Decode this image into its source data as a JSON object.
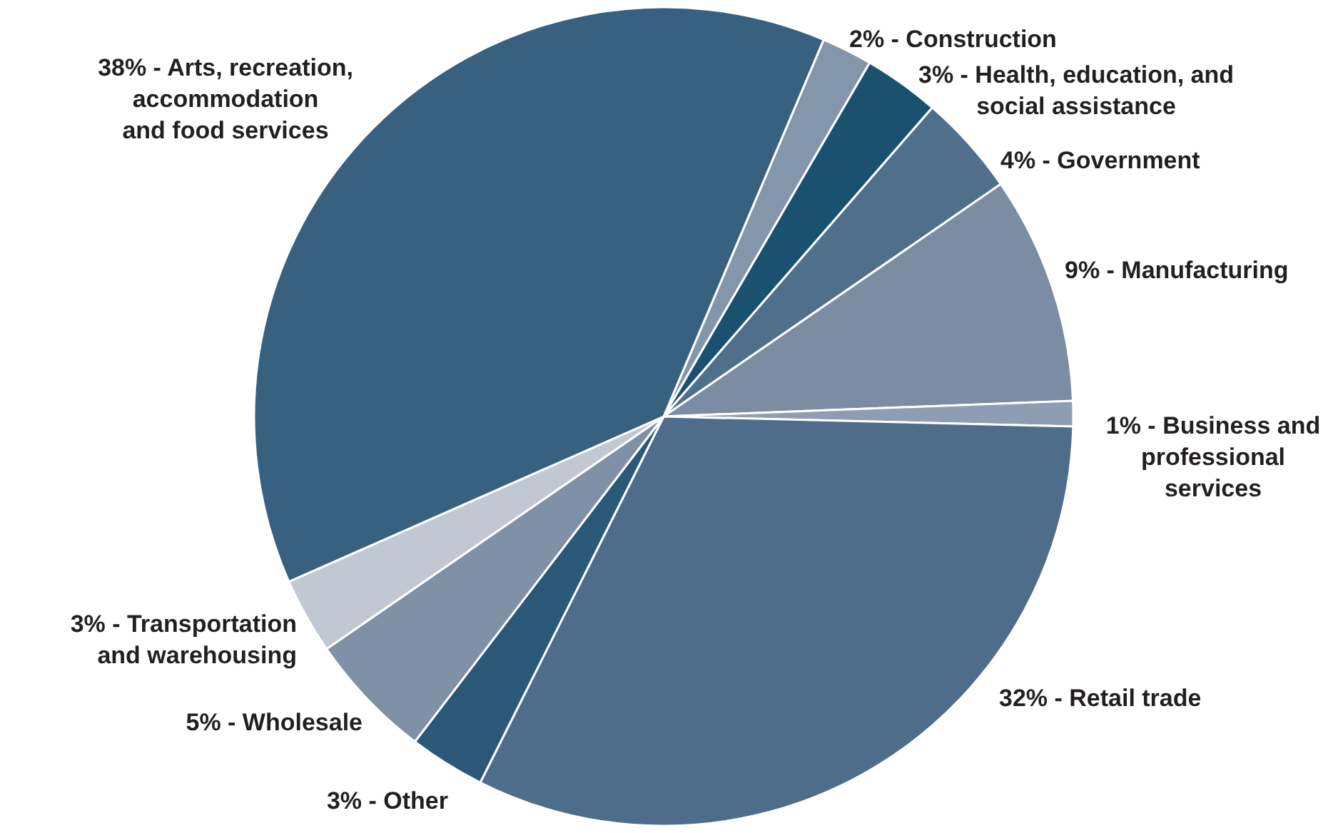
{
  "chart_data": {
    "type": "pie",
    "categories": [
      "2% - Construction",
      "3% - Health, education, and\nsocial assistance",
      "4% - Government",
      "9% - Manufacturing",
      "1% - Business and\nprofessional\nservices",
      "32% - Retail trade",
      "3% - Other",
      "5% - Wholesale",
      "3% - Transportation\nand warehousing",
      "38% - Arts, recreation,\naccommodation\nand food services"
    ],
    "values": [
      2,
      3,
      4,
      9,
      1,
      32,
      3,
      5,
      3,
      38
    ],
    "colors": [
      "#8496ab",
      "#1a5070",
      "#4f6f8b",
      "#7b8ca3",
      "#8e9db2",
      "#4d6d8a",
      "#2b5878",
      "#8090a6",
      "#c2c8d3",
      "#37617f"
    ]
  }
}
